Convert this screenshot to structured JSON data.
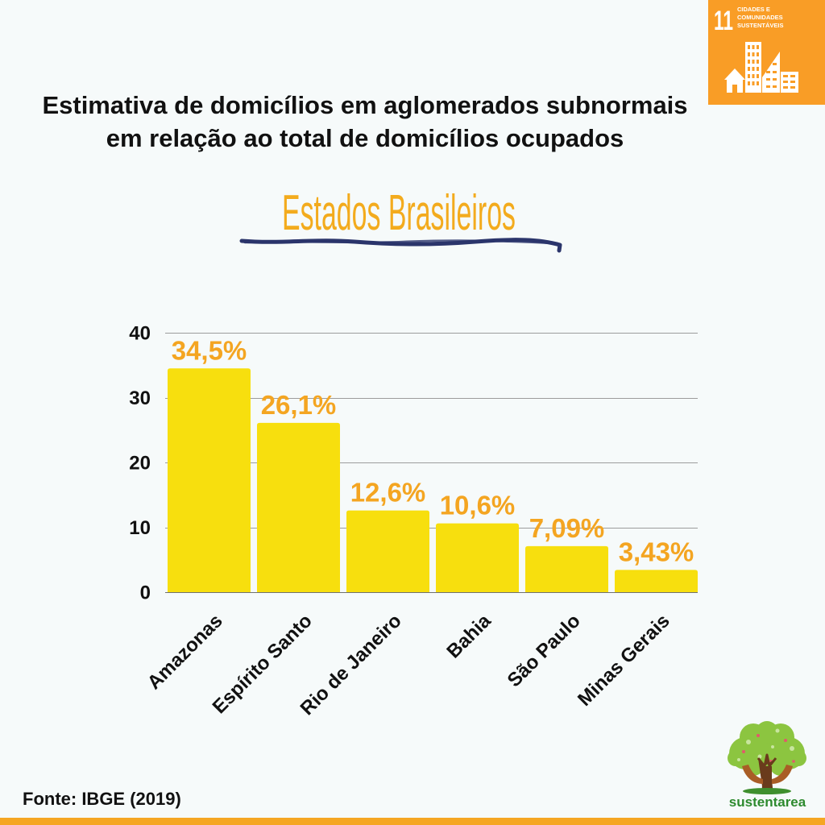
{
  "header": {
    "title_lines": [
      "Estimativa de domicílios em aglomerados subnormais",
      "em relação ao total de domicílios ocupados"
    ],
    "subtitle": "Estados Brasileiros"
  },
  "sdg_badge": {
    "number": "11",
    "label_lines": [
      "CIDADES E",
      "COMUNIDADES",
      "SUSTENTÁVEIS"
    ],
    "icon": "sdg-11-city-buildings-icon",
    "color": "#f99d26"
  },
  "chart_data": {
    "type": "bar",
    "categories": [
      "Amazonas",
      "Espírito Santo",
      "Rio de Janeiro",
      "Bahia",
      "São Paulo",
      "Minas Gerais"
    ],
    "values": [
      34.5,
      26.1,
      12.6,
      10.6,
      7.09,
      3.43
    ],
    "value_labels": [
      "34,5%",
      "26,1%",
      "12,6%",
      "10,6%",
      "7,09%",
      "3,43%"
    ],
    "y_ticks": [
      0,
      10,
      20,
      30,
      40
    ],
    "ylim": [
      0,
      40
    ],
    "xlabel": "",
    "ylabel": "",
    "grid": true,
    "legend": "none",
    "bar_color": "#f7df0e",
    "label_color": "#f4a521"
  },
  "footer": {
    "source": "Fonte: IBGE (2019)",
    "logo_text": "sustentarea",
    "logo_icon": "sustentarea-tree-hands-icon"
  },
  "colors": {
    "background": "#f6fafa",
    "subtitle": "#f3ab1d",
    "underline": "#2b356b",
    "accent_bar": "#f5a623",
    "logo_green": "#2d8a2e"
  }
}
